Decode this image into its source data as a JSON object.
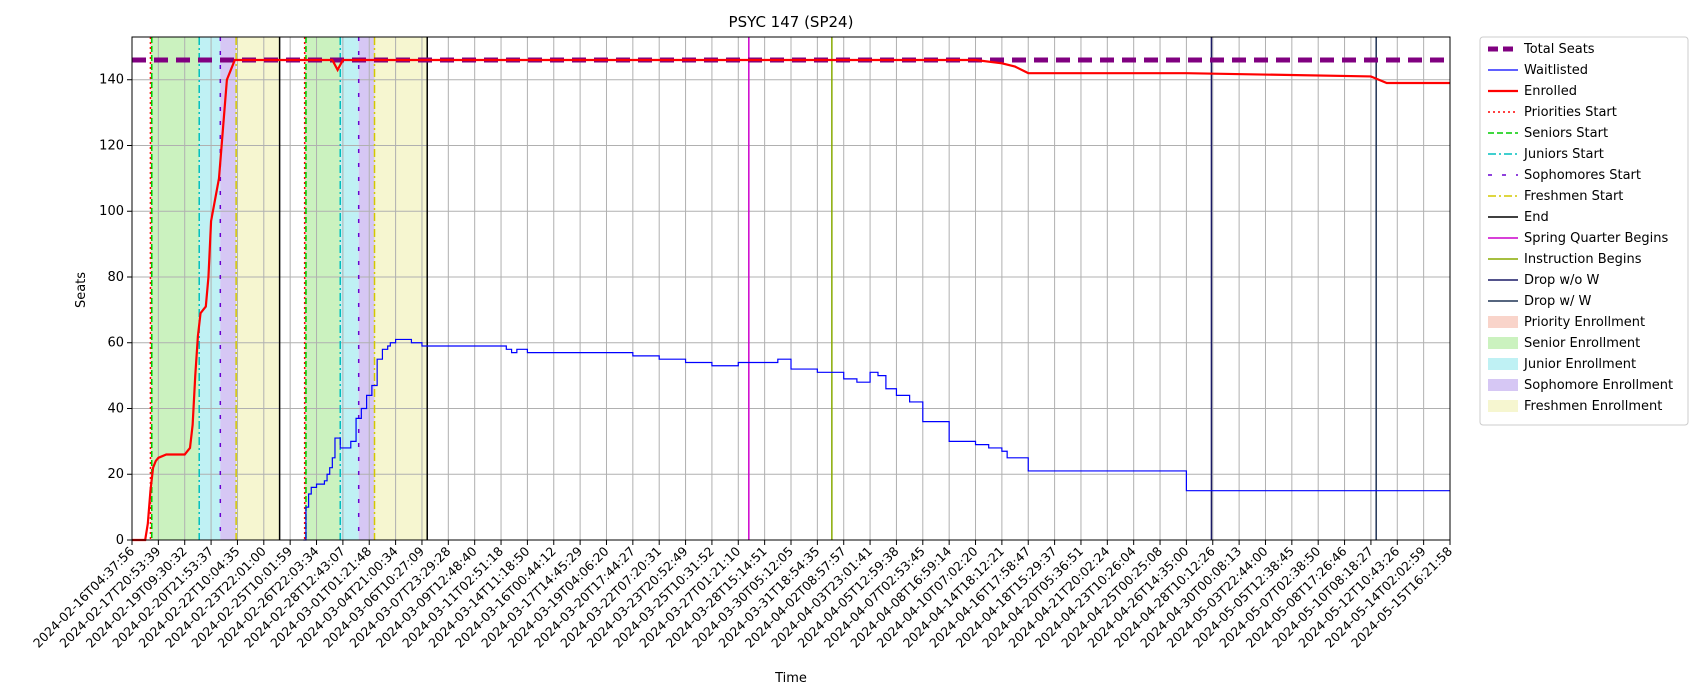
{
  "chart_data": {
    "type": "line",
    "title": "PSYC 147 (SP24)",
    "xlabel": "Time",
    "ylabel": "Seats",
    "ylim": [
      0,
      153
    ],
    "yticks": [
      0,
      20,
      40,
      60,
      80,
      100,
      120,
      140
    ],
    "xlim": [
      "2024-02-16T04:37:56",
      "2024-05-15T16:21:58"
    ],
    "x_tick_labels": [
      "2024-02-16T04:37:56",
      "2024-02-17T20:53:39",
      "2024-02-19T09:30:32",
      "2024-02-20T21:53:37",
      "2024-02-22T10:04:35",
      "2024-02-23T22:01:00",
      "2024-02-25T10:01:59",
      "2024-02-26T22:03:34",
      "2024-02-28T12:43:07",
      "2024-03-01T01:21:48",
      "2024-03-04T21:00:34",
      "2024-03-06T10:27:09",
      "2024-03-07T23:29:28",
      "2024-03-09T12:48:40",
      "2024-03-11T02:51:18",
      "2024-03-14T11:18:50",
      "2024-03-16T00:44:12",
      "2024-03-17T14:45:29",
      "2024-03-19T04:06:20",
      "2024-03-20T17:44:27",
      "2024-03-22T07:20:31",
      "2024-03-23T20:52:49",
      "2024-03-25T10:31:52",
      "2024-03-27T01:21:10",
      "2024-03-28T15:14:51",
      "2024-03-30T05:12:05",
      "2024-03-31T18:54:35",
      "2024-04-02T08:57:57",
      "2024-04-03T23:01:41",
      "2024-04-05T12:59:38",
      "2024-04-07T02:53:45",
      "2024-04-08T16:59:14",
      "2024-04-10T07:02:20",
      "2024-04-14T18:12:21",
      "2024-04-16T17:58:47",
      "2024-04-18T15:29:37",
      "2024-04-20T05:36:51",
      "2024-04-21T20:02:24",
      "2024-04-23T10:26:04",
      "2024-04-25T00:25:08",
      "2024-04-26T14:35:00",
      "2024-04-28T10:12:26",
      "2024-04-30T00:08:13",
      "2024-05-03T22:44:00",
      "2024-05-05T12:38:45",
      "2024-05-07T02:38:50",
      "2024-05-08T17:26:46",
      "2024-05-10T08:18:27",
      "2024-05-12T10:43:26",
      "2024-05-14T02:02:59",
      "2024-05-15T16:21:58"
    ],
    "grid": true,
    "legend_position": "outside-right",
    "series": [
      {
        "name": "Total Seats",
        "style": "dashed-thick",
        "color": "#800080",
        "x": [
          0,
          50
        ],
        "values": [
          146,
          146
        ]
      },
      {
        "name": "Waitlisted",
        "style": "step",
        "color": "#0000ff",
        "x": [
          6.5,
          6.6,
          6.7,
          6.8,
          7.0,
          7.2,
          7.3,
          7.4,
          7.5,
          7.6,
          7.7,
          7.9,
          8.0,
          8.3,
          8.5,
          8.7,
          8.9,
          9.0,
          9.1,
          9.3,
          9.5,
          9.7,
          9.8,
          10.0,
          10.3,
          10.6,
          11.0,
          11.2,
          11.4,
          12.0,
          13.0,
          14.0,
          14.2,
          14.4,
          14.6,
          15.0,
          15.5,
          16.0,
          17.0,
          18.0,
          19.0,
          20.0,
          21.0,
          22.0,
          23.0,
          24.0,
          24.5,
          25.0,
          26.0,
          27.0,
          27.5,
          28.0,
          28.3,
          28.6,
          29.0,
          29.5,
          30.0,
          31.0,
          32.0,
          32.5,
          33.0,
          33.2,
          34.0,
          40.0,
          50.0
        ],
        "values": [
          0,
          10,
          14,
          16,
          17,
          17,
          18,
          20,
          22,
          25,
          31,
          28,
          28,
          30,
          37,
          40,
          44,
          44,
          47,
          55,
          58,
          59,
          60,
          61,
          61,
          60,
          59,
          59,
          59,
          59,
          59,
          59,
          58,
          57,
          58,
          57,
          57,
          57,
          57,
          57,
          56,
          55,
          54,
          53,
          54,
          54,
          55,
          52,
          51,
          49,
          48,
          51,
          50,
          46,
          44,
          42,
          36,
          30,
          29,
          28,
          27,
          25,
          21,
          15,
          15
        ]
      },
      {
        "name": "Enrolled",
        "style": "solid",
        "color": "#ff0000",
        "x": [
          0,
          0.5,
          0.6,
          0.7,
          0.8,
          0.9,
          1.0,
          1.3,
          1.6,
          2.0,
          2.1,
          2.2,
          2.3,
          2.4,
          2.5,
          2.6,
          2.7,
          2.8,
          2.9,
          3.0,
          3.3,
          3.6,
          3.9,
          4.0,
          7.6,
          7.8,
          8.0,
          10.0,
          20.0,
          32.0,
          33.0,
          33.5,
          34.0,
          40.0,
          47.0,
          47.3,
          47.6,
          50.0
        ],
        "values": [
          0,
          0,
          5,
          15,
          22,
          24,
          25,
          26,
          26,
          26,
          27,
          28,
          35,
          50,
          62,
          69,
          70,
          71,
          80,
          97,
          110,
          140,
          146,
          146,
          146,
          143,
          146,
          146,
          146,
          146,
          145,
          144,
          142,
          142,
          141,
          140,
          139,
          139
        ]
      }
    ],
    "markers": [
      {
        "name": "Priorities Start",
        "style": "dotted",
        "color": "#ff0000",
        "x": [
          0.7,
          6.55
        ]
      },
      {
        "name": "Seniors Start",
        "style": "dashed",
        "color": "#00cc00",
        "x": [
          0.75,
          6.6
        ]
      },
      {
        "name": "Juniors Start",
        "style": "dashdot",
        "color": "#00bfbf",
        "x": [
          2.55,
          7.9
        ]
      },
      {
        "name": "Sophomores Start",
        "style": "loosedash",
        "color": "#6a00d0",
        "x": [
          3.35,
          8.6
        ]
      },
      {
        "name": "Freshmen Start",
        "style": "dashdot",
        "color": "#d4c800",
        "x": [
          3.95,
          9.2
        ]
      },
      {
        "name": "End",
        "style": "solid",
        "color": "#000000",
        "x": [
          5.6,
          11.2
        ]
      },
      {
        "name": "Spring Quarter Begins",
        "style": "solid",
        "color": "#cc00cc",
        "x": [
          23.4
        ]
      },
      {
        "name": "Instruction Begins",
        "style": "solid",
        "color": "#88aa00",
        "x": [
          26.55
        ]
      },
      {
        "name": "Drop w/o W",
        "style": "solid",
        "color": "#1a1a66",
        "x": [
          40.95
        ]
      },
      {
        "name": "Drop w/ W",
        "style": "solid",
        "color": "#1f3355",
        "x": [
          47.2
        ]
      }
    ],
    "spans": [
      {
        "name": "Priority Enrollment",
        "color": "#f7c5b8",
        "ranges": [
          [
            0.7,
            0.75
          ],
          [
            6.55,
            6.6
          ]
        ]
      },
      {
        "name": "Senior Enrollment",
        "color": "#b9eeaa",
        "ranges": [
          [
            0.75,
            2.55
          ],
          [
            6.6,
            7.9
          ]
        ]
      },
      {
        "name": "Junior Enrollment",
        "color": "#a9ecf0",
        "ranges": [
          [
            2.55,
            3.35
          ],
          [
            7.9,
            8.6
          ]
        ]
      },
      {
        "name": "Sophomore Enrollment",
        "color": "#c8b4f0",
        "ranges": [
          [
            3.35,
            3.95
          ],
          [
            8.6,
            9.2
          ]
        ]
      },
      {
        "name": "Freshmen Enrollment",
        "color": "#f3f3c0",
        "ranges": [
          [
            3.95,
            5.6
          ],
          [
            9.2,
            11.2
          ]
        ]
      }
    ]
  }
}
